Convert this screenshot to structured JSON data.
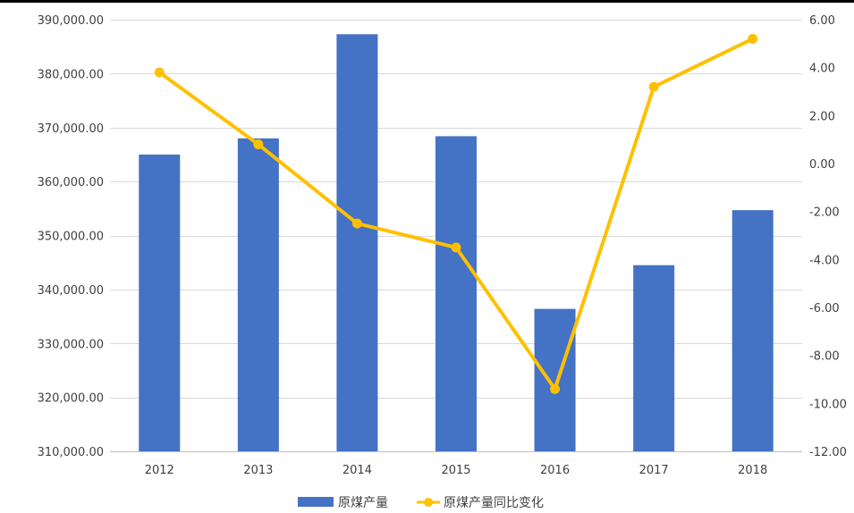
{
  "chart_data": {
    "type": "bar",
    "categories": [
      "2012",
      "2013",
      "2014",
      "2015",
      "2016",
      "2017",
      "2018"
    ],
    "series": [
      {
        "name": "原煤产量",
        "type": "bar",
        "axis": "left",
        "color": "#4472C4",
        "values": [
          365000,
          368000,
          387300,
          368400,
          336400,
          344500,
          354700
        ]
      },
      {
        "name": "原煤产量同比变化",
        "type": "line",
        "axis": "right",
        "color": "#FFC000",
        "values": [
          3.8,
          0.8,
          -2.5,
          -3.5,
          -9.4,
          3.2,
          5.2
        ]
      }
    ],
    "y_left": {
      "ylim": [
        310000,
        390000
      ],
      "ticks": [
        "310,000.00",
        "320,000.00",
        "330,000.00",
        "340,000.00",
        "350,000.00",
        "360,000.00",
        "370,000.00",
        "380,000.00",
        "390,000.00"
      ]
    },
    "y_right": {
      "ylim": [
        -12,
        6
      ],
      "ticks": [
        "-12.00",
        "-10.00",
        "-8.00",
        "-6.00",
        "-4.00",
        "-2.00",
        "0.00",
        "2.00",
        "4.00",
        "6.00"
      ]
    },
    "grid": true,
    "legend": "bottom-center"
  }
}
